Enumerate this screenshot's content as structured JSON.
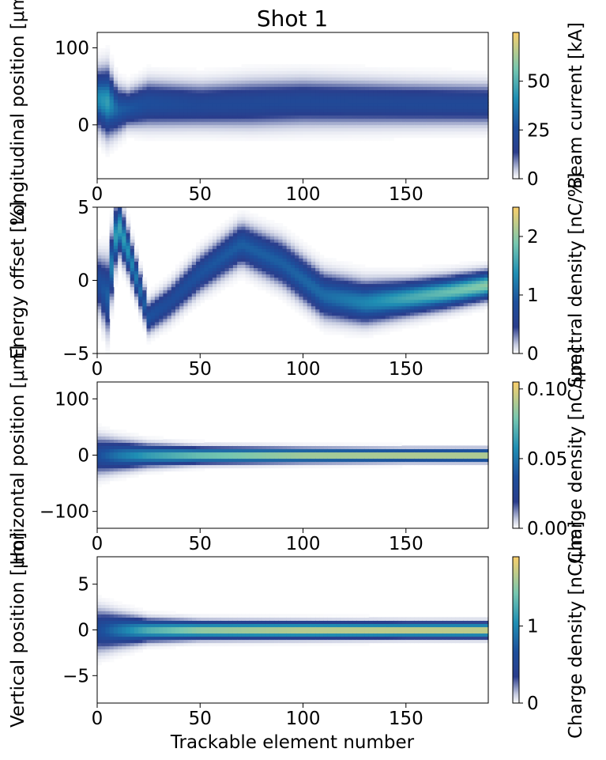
{
  "title": "Shot 1",
  "xlabel": "Trackable element number",
  "chart_data": [
    {
      "type": "heatmap",
      "ylabel": "Longitudinal position [μm]",
      "colorbar_label": "Beam current [kA]",
      "xlim": [
        0,
        190
      ],
      "ylim": [
        -70,
        120
      ],
      "xticks": [
        "0",
        "50",
        "100",
        "150"
      ],
      "xtick_values": [
        0,
        50,
        100,
        150
      ],
      "yticks": [
        "0",
        "100"
      ],
      "ytick_values": [
        0,
        100
      ],
      "cbar_range": [
        0,
        75
      ],
      "cbar_ticks": [
        "0",
        "25",
        "50"
      ],
      "cbar_tick_values": [
        0,
        25,
        50
      ],
      "trend": {
        "element": [
          0,
          5,
          10,
          15,
          25,
          50,
          75,
          100,
          125,
          150,
          190
        ],
        "center": [
          35,
          30,
          20,
          22,
          28,
          26,
          28,
          30,
          29,
          28,
          27
        ],
        "halfwidth": [
          30,
          35,
          25,
          20,
          25,
          24,
          26,
          26,
          25,
          24,
          23
        ],
        "peak": [
          40,
          45,
          30,
          28,
          25,
          22,
          22,
          22,
          22,
          22,
          22
        ]
      }
    },
    {
      "type": "heatmap",
      "ylabel": "Energy offset [%]",
      "colorbar_label": "Spectral density [nC/%]",
      "xlim": [
        0,
        190
      ],
      "ylim": [
        -5,
        5
      ],
      "xticks": [
        "0",
        "50",
        "100",
        "150"
      ],
      "xtick_values": [
        0,
        50,
        100,
        150
      ],
      "yticks": [
        "−5",
        "0",
        "5"
      ],
      "ytick_values": [
        -5,
        0,
        5
      ],
      "cbar_range": [
        0,
        2.5
      ],
      "cbar_ticks": [
        "0",
        "1",
        "2"
      ],
      "cbar_tick_values": [
        0,
        1,
        2
      ],
      "trend": {
        "element": [
          0,
          5,
          10,
          15,
          25,
          35,
          50,
          70,
          90,
          110,
          130,
          150,
          170,
          190
        ],
        "center": [
          0,
          -1,
          4,
          2,
          -2.5,
          -1.5,
          0.5,
          2.5,
          1.2,
          -1,
          -1.5,
          -1.2,
          -0.8,
          -0.3
        ],
        "halfwidth": [
          1.5,
          2.0,
          1.5,
          1.2,
          0.9,
          1.0,
          1.1,
          1.2,
          1.3,
          1.3,
          1.2,
          1.0,
          0.9,
          0.8
        ],
        "peak": [
          0.8,
          1.0,
          1.6,
          1.4,
          0.9,
          0.8,
          0.9,
          1.0,
          1.0,
          1.1,
          1.3,
          1.6,
          1.8,
          2.0
        ]
      }
    },
    {
      "type": "heatmap",
      "ylabel": "Horizontal position [μm]",
      "colorbar_label": "Charge density [nC/μm]",
      "xlim": [
        0,
        190
      ],
      "ylim": [
        -130,
        130
      ],
      "xticks": [
        "0",
        "50",
        "100",
        "150"
      ],
      "xtick_values": [
        0,
        50,
        100,
        150
      ],
      "yticks": [
        "−100",
        "0",
        "100"
      ],
      "ytick_values": [
        -100,
        0,
        100
      ],
      "cbar_range": [
        0,
        0.105
      ],
      "cbar_ticks": [
        "0.00",
        "0.05",
        "0.10"
      ],
      "cbar_tick_values": [
        0,
        0.05,
        0.1
      ],
      "trend": {
        "element": [
          0,
          10,
          25,
          50,
          100,
          150,
          190
        ],
        "center": [
          0,
          0,
          0,
          0,
          0,
          0,
          0
        ],
        "halfwidth": [
          28,
          22,
          16,
          12,
          10,
          9,
          9
        ],
        "peak": [
          0.035,
          0.05,
          0.065,
          0.08,
          0.095,
          0.1,
          0.1
        ]
      }
    },
    {
      "type": "heatmap",
      "ylabel": "Vertical position [μm]",
      "colorbar_label": "Charge density [nC/μm]",
      "xlim": [
        0,
        190
      ],
      "ylim": [
        -8,
        8
      ],
      "xticks": [
        "0",
        "50",
        "100",
        "150"
      ],
      "xtick_values": [
        0,
        50,
        100,
        150
      ],
      "yticks": [
        "−5",
        "0",
        "5"
      ],
      "ytick_values": [
        -5,
        0,
        5
      ],
      "cbar_range": [
        0,
        1.9
      ],
      "cbar_ticks": [
        "0",
        "1"
      ],
      "cbar_tick_values": [
        0,
        1
      ],
      "trend": {
        "element": [
          0,
          10,
          25,
          50,
          100,
          150,
          190
        ],
        "center": [
          0,
          0,
          0,
          0,
          0,
          0,
          0
        ],
        "halfwidth": [
          2.0,
          1.5,
          1.0,
          0.8,
          0.75,
          0.7,
          0.7
        ],
        "peak": [
          0.6,
          0.9,
          1.3,
          1.6,
          1.75,
          1.8,
          1.8
        ]
      }
    }
  ]
}
